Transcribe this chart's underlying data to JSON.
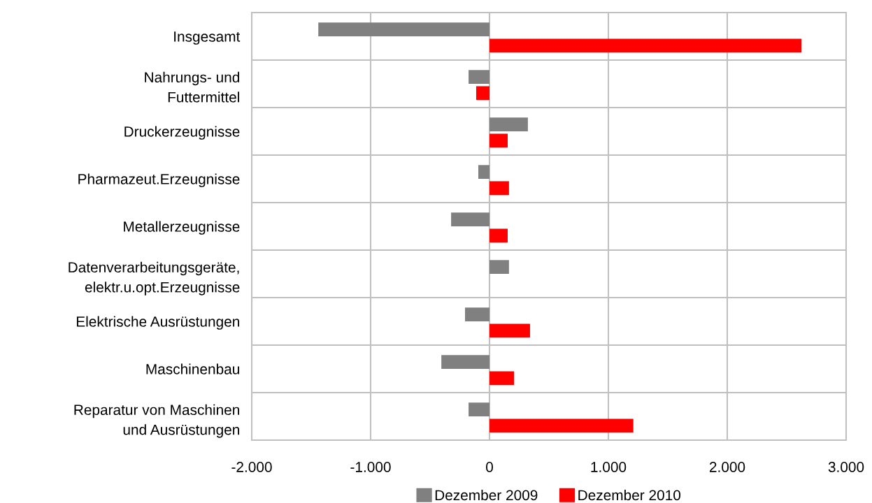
{
  "chart_data": {
    "type": "bar",
    "orientation": "horizontal",
    "categories": [
      "Insgesamt",
      "Nahrungs- und\nFuttermittel",
      "Druckerzeugnisse",
      "Pharmazeut.Erzeugnisse",
      "Metallerzeugnisse",
      "Datenverarbeitungsgeräte,\nelektr.u.opt.Erzeugnisse",
      "Elektrische Ausrüstungen",
      "Maschinenbau",
      "Reparatur von Maschinen\nund Ausrüstungen"
    ],
    "series": [
      {
        "name": "Dezember 2009",
        "color": "#808080",
        "values": [
          -1440,
          -176,
          323,
          -94,
          -323,
          164,
          -206,
          -405,
          -176
        ]
      },
      {
        "name": "Dezember 2010",
        "color": "#ff0000",
        "values": [
          2625,
          -112,
          153,
          164,
          153,
          null,
          341,
          206,
          1210
        ]
      }
    ],
    "xlim": [
      -2000,
      3000
    ],
    "xticks": [
      {
        "value": -2000,
        "label": "-2.000"
      },
      {
        "value": -1000,
        "label": "-1.000"
      },
      0,
      {
        "value": 1000,
        "label": "1.000"
      },
      {
        "value": 2000,
        "label": "2.000"
      },
      {
        "value": 3000,
        "label": "3.000"
      }
    ],
    "grid": true,
    "legend": "bottom"
  }
}
